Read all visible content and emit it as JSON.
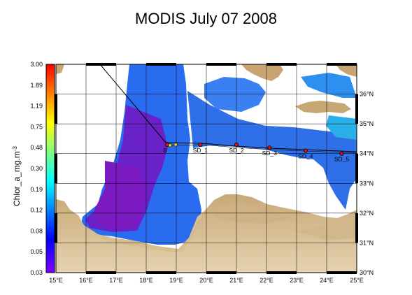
{
  "title": "MODIS July 07 2008",
  "colorbar": {
    "label": "Chlor_a_mg.m",
    "label_sup": "-3",
    "ticks": [
      "3.00",
      "1.89",
      "1.19",
      "0.75",
      "0.48",
      "0.30",
      "0.19",
      "0.12",
      "0.08",
      "0.05",
      "0.03"
    ],
    "colors": [
      "#ff0000",
      "#ff8000",
      "#ffff00",
      "#80ff80",
      "#00ffff",
      "#0080ff",
      "#0000ff",
      "#8000ff"
    ]
  },
  "axes": {
    "lon_labels": [
      "15°E",
      "16°E",
      "17°E",
      "18°E",
      "19°E",
      "20°E",
      "21°E",
      "22°E",
      "23°E",
      "24°E",
      "25°E"
    ],
    "lat_labels": [
      "36°N",
      "35°N",
      "34°N",
      "33°N",
      "32°N",
      "31°N",
      "30°N"
    ]
  },
  "stations": [
    {
      "label": "B",
      "lon": 18.7,
      "lat": 34.3
    },
    {
      "label": "SD_1",
      "lon": 19.8,
      "lat": 34.3
    },
    {
      "label": "SD_2",
      "lon": 21.0,
      "lat": 34.3
    },
    {
      "label": "SD_3",
      "lon": 22.1,
      "lat": 34.2
    },
    {
      "label": "SD_4",
      "lon": 23.3,
      "lat": 34.1
    },
    {
      "label": "SD_5",
      "lon": 24.5,
      "lat": 34.0
    }
  ]
}
